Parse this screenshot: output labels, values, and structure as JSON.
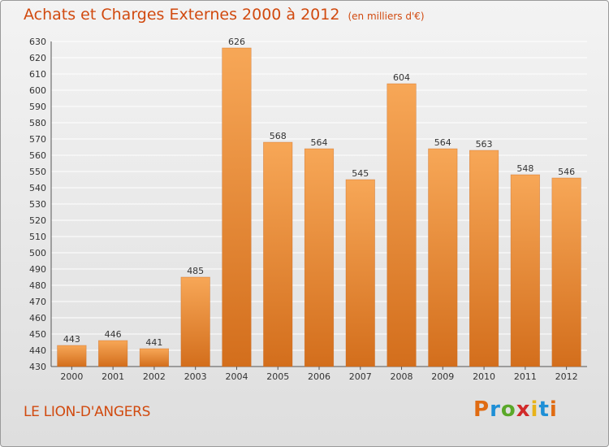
{
  "title": "Achats et Charges Externes 2000 à 2012",
  "subtitle": "(en milliers d'€)",
  "location": "LE LION-D'ANGERS",
  "logo": {
    "letters": [
      "P",
      "r",
      "o",
      "x",
      "i",
      "t",
      "i"
    ]
  },
  "colors": {
    "bar_top": "#f7a757",
    "bar_bottom": "#d36e1c",
    "title": "#d14a0f",
    "grid": "#ffffff"
  },
  "chart_data": {
    "type": "bar",
    "categories": [
      "2000",
      "2001",
      "2002",
      "2003",
      "2004",
      "2005",
      "2006",
      "2007",
      "2008",
      "2009",
      "2010",
      "2011",
      "2012"
    ],
    "values": [
      443,
      446,
      441,
      485,
      626,
      568,
      564,
      545,
      604,
      564,
      563,
      548,
      546
    ],
    "yticks": [
      430,
      440,
      450,
      460,
      470,
      480,
      490,
      500,
      510,
      520,
      530,
      540,
      550,
      560,
      570,
      580,
      590,
      600,
      610,
      620,
      630
    ],
    "ylim": [
      430,
      630
    ],
    "grid": true,
    "xlabel": "",
    "ylabel": ""
  }
}
